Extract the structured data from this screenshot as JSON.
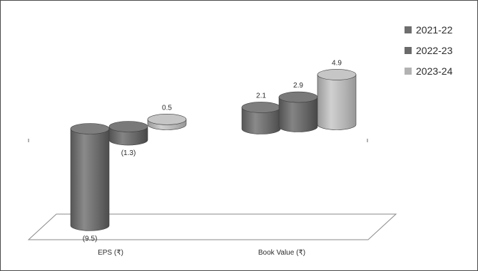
{
  "chart_data": {
    "type": "bar",
    "style": "3d-cylinder",
    "categories": [
      "EPS (₹)",
      "Book Value (₹)"
    ],
    "series": [
      {
        "name": "2021-22",
        "values": [
          -9.5,
          2.1
        ],
        "labels": [
          "(9.5)",
          "2.1"
        ],
        "color": "#6e6e6e"
      },
      {
        "name": "2022-23",
        "values": [
          -1.3,
          2.9
        ],
        "labels": [
          "(1.3)",
          "2.9"
        ],
        "color": "#6a6a6a"
      },
      {
        "name": "2023-24",
        "values": [
          0.5,
          4.9
        ],
        "labels": [
          "0.5",
          "4.9"
        ],
        "color": "#b2b2b2"
      }
    ],
    "legend_position": "top-right",
    "grid": false
  }
}
